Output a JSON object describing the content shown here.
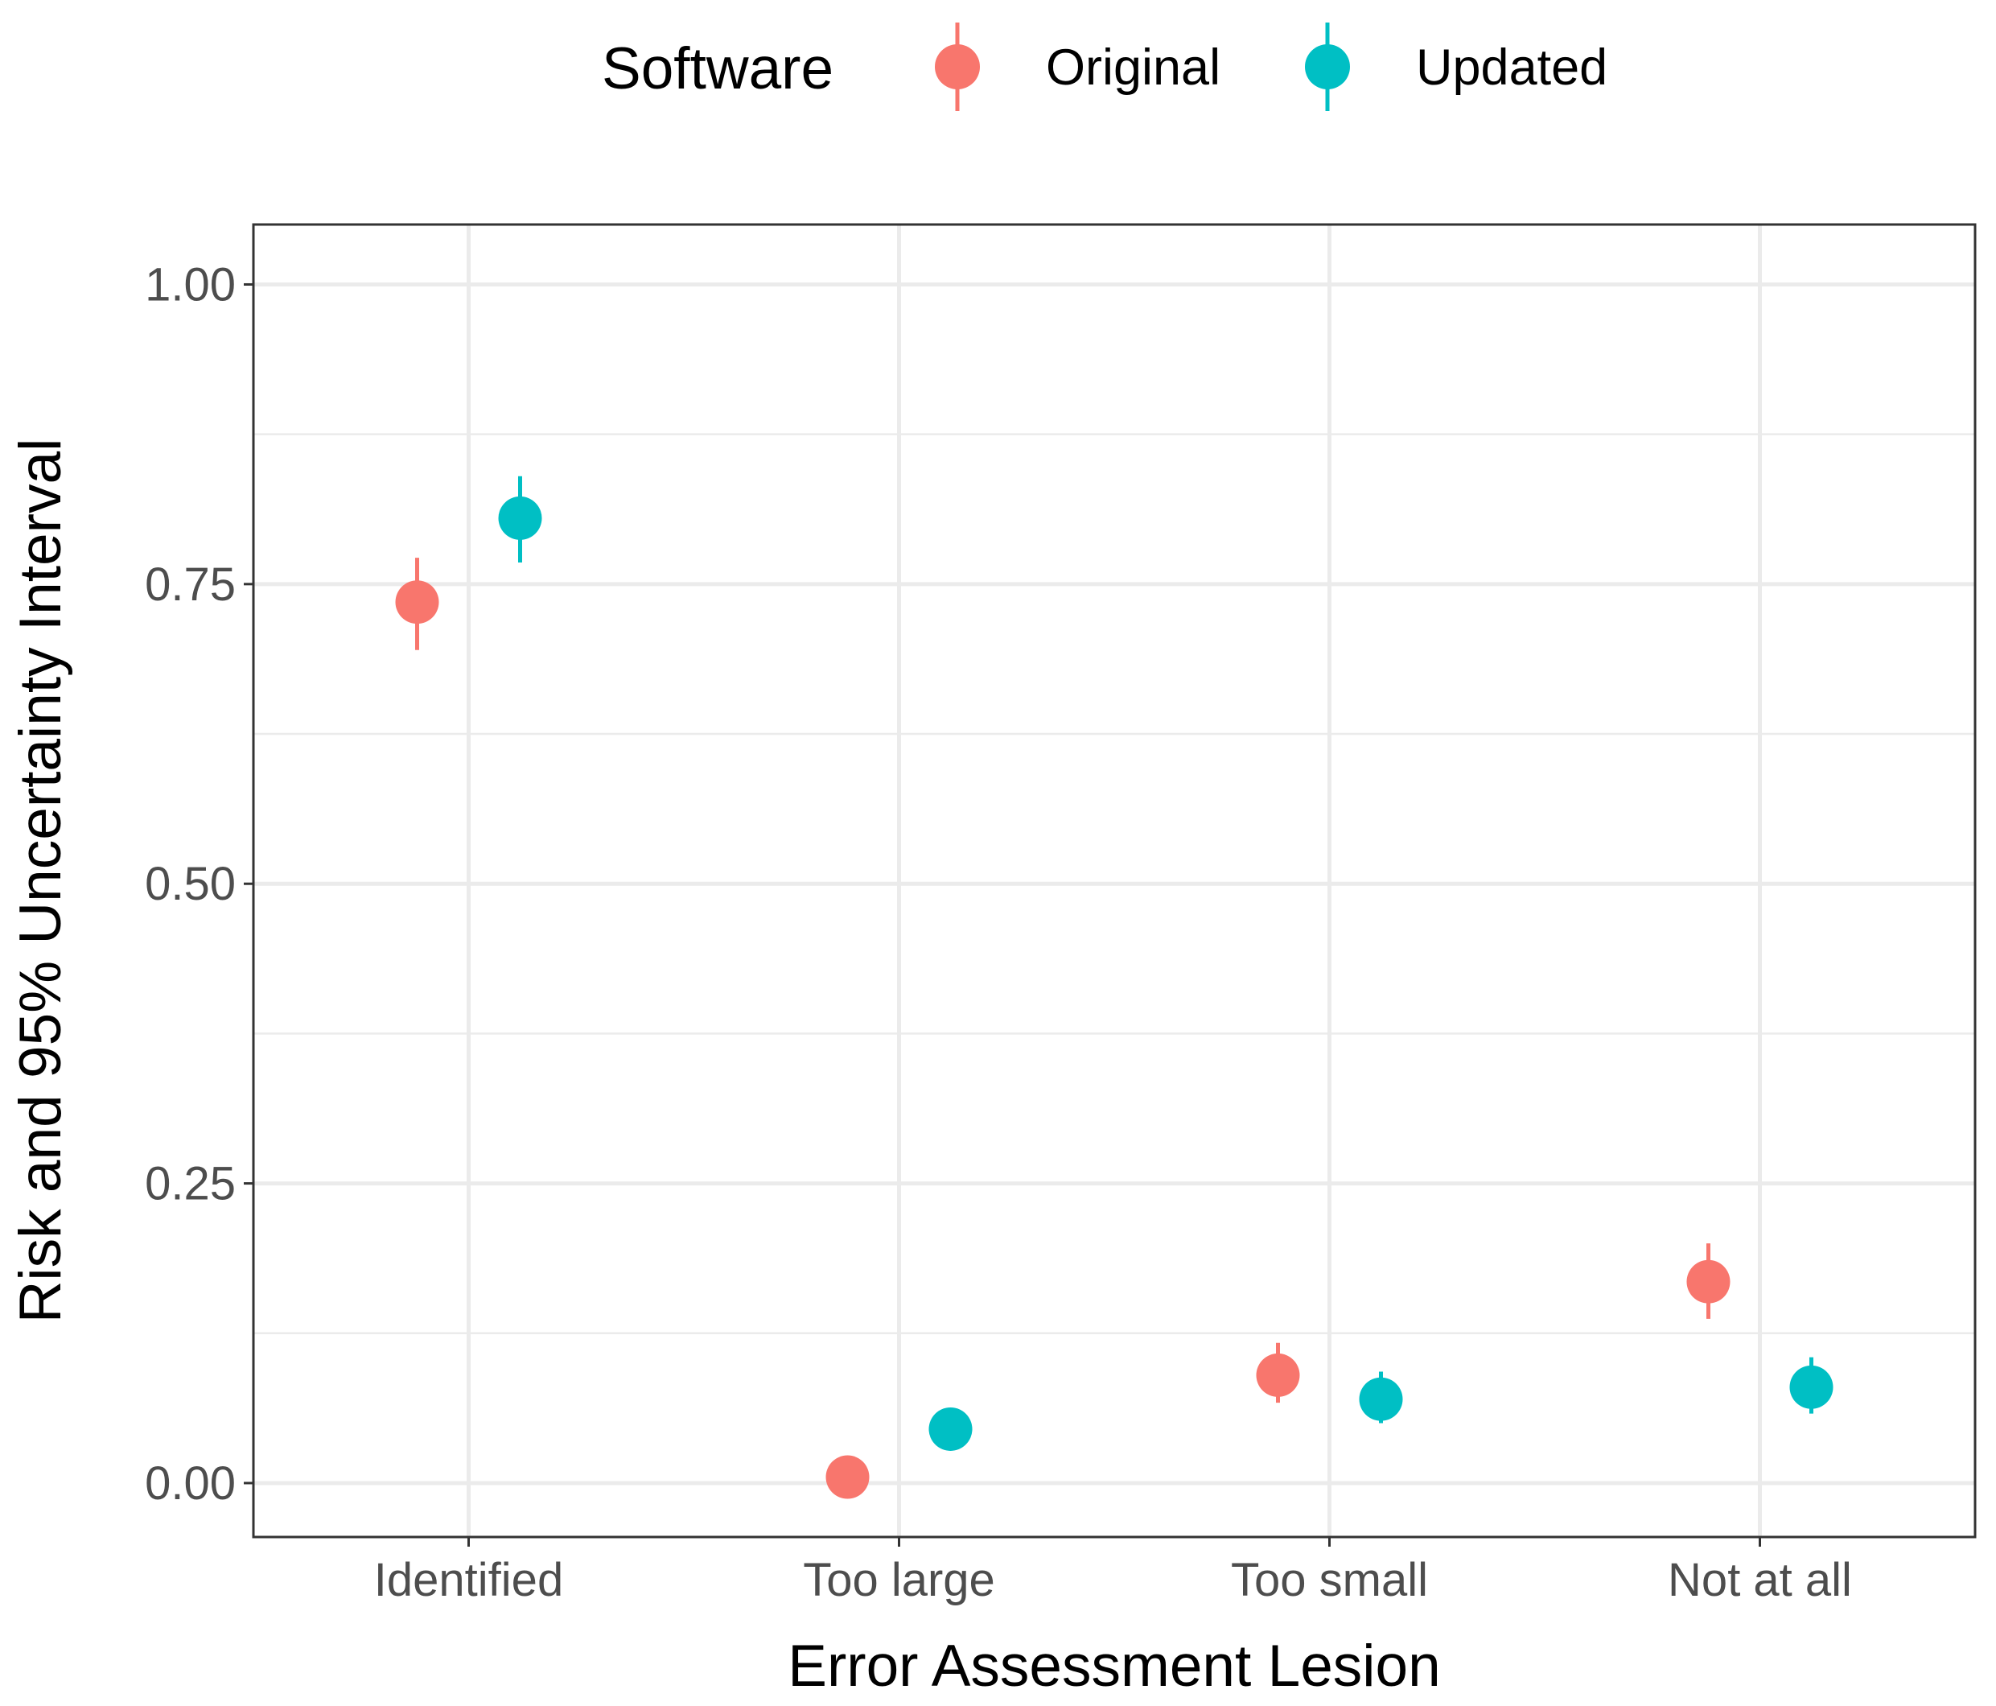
{
  "chart_data": {
    "type": "scatter",
    "subtype": "point-range",
    "xlabel": "Error Assessment Lesion",
    "ylabel": "Risk and 95% Uncertainty Interval",
    "categories": [
      "Identified",
      "Too large",
      "Too small",
      "Not at all"
    ],
    "ylim": [
      -0.045,
      1.05
    ],
    "yticks": [
      0.0,
      0.25,
      0.5,
      0.75,
      1.0
    ],
    "ytick_labels": [
      "0.00",
      "0.25",
      "0.50",
      "0.75",
      "1.00"
    ],
    "grid": true,
    "legend": {
      "title": "Software",
      "position": "top"
    },
    "series": [
      {
        "name": "Original",
        "color": "#F8766D",
        "values": [
          0.735,
          0.005,
          0.09,
          0.168
        ],
        "lower": [
          0.695,
          0.0,
          0.067,
          0.137
        ],
        "upper": [
          0.772,
          0.012,
          0.117,
          0.2
        ]
      },
      {
        "name": "Updated",
        "color": "#00BFC4",
        "values": [
          0.805,
          0.045,
          0.07,
          0.08
        ],
        "lower": [
          0.768,
          0.035,
          0.05,
          0.058
        ],
        "upper": [
          0.84,
          0.058,
          0.093,
          0.105
        ]
      }
    ]
  }
}
